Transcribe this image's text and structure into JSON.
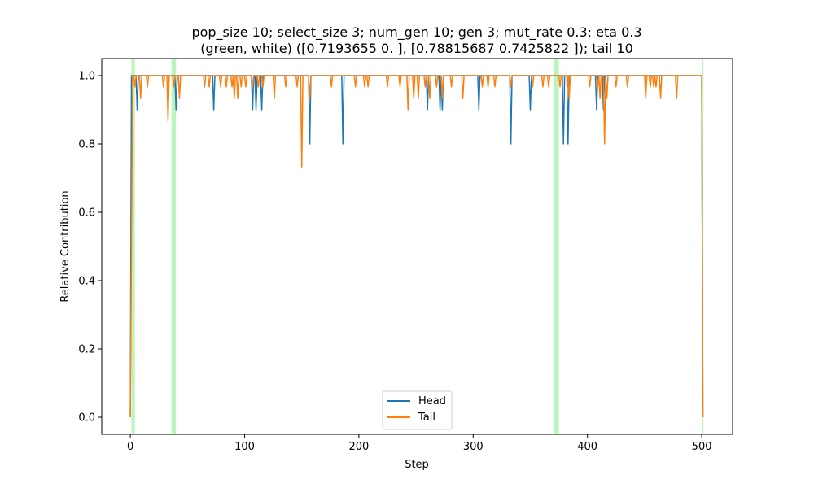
{
  "chart_data": {
    "type": "line",
    "title_line1": "pop_size 10; select_size 3; num_gen 10; gen 3; mut_rate 0.3; eta 0.3",
    "title_line2": "(green, white) ([0.7193655 0.       ], [0.78815687 0.7425822 ]); tail 10",
    "xlabel": "Step",
    "ylabel": "Relative Contribution",
    "xlim": [
      -25,
      527
    ],
    "ylim": [
      -0.05,
      1.05
    ],
    "xticks": [
      0,
      100,
      200,
      300,
      400,
      500
    ],
    "yticks": [
      0.0,
      0.2,
      0.4,
      0.6,
      0.8,
      1.0
    ],
    "ytick_labels": [
      "0.0",
      "0.2",
      "0.4",
      "0.6",
      "0.8",
      "1.0"
    ],
    "legend_position": "lower center",
    "highlight_color": "#90ee90",
    "highlight_spans": [
      [
        1,
        4
      ],
      [
        36,
        40
      ],
      [
        371,
        375
      ],
      [
        500,
        501
      ]
    ],
    "series": [
      {
        "name": "Head",
        "color": "#1f77b4",
        "baseline": 1.0,
        "start": [
          [
            0,
            0.0
          ],
          [
            1,
            1.0
          ]
        ],
        "end": [
          [
            500,
            1.0
          ],
          [
            501,
            0.0
          ]
        ],
        "dips": [
          [
            6,
            0.9
          ],
          [
            40,
            0.9
          ],
          [
            73,
            0.9
          ],
          [
            107,
            0.9
          ],
          [
            110,
            0.9
          ],
          [
            115,
            0.9
          ],
          [
            157,
            0.8
          ],
          [
            186,
            0.8
          ],
          [
            260,
            0.9
          ],
          [
            271,
            0.9
          ],
          [
            273,
            0.9
          ],
          [
            305,
            0.9
          ],
          [
            333,
            0.8
          ],
          [
            350,
            0.9
          ],
          [
            379,
            0.8
          ],
          [
            383,
            0.8
          ],
          [
            408,
            0.9
          ],
          [
            414,
            0.9
          ]
        ]
      },
      {
        "name": "Tail",
        "color": "#ff7f0e",
        "baseline": 1.0,
        "start": [
          [
            0,
            0.0
          ],
          [
            2,
            1.0
          ]
        ],
        "end": [
          [
            500,
            1.0
          ],
          [
            501,
            0.0
          ]
        ],
        "dips": [
          [
            4,
            0.967
          ],
          [
            9,
            0.933
          ],
          [
            15,
            0.967
          ],
          [
            29,
            0.967
          ],
          [
            33,
            0.867
          ],
          [
            38,
            0.967
          ],
          [
            43,
            0.933
          ],
          [
            65,
            0.967
          ],
          [
            69,
            0.967
          ],
          [
            79,
            0.967
          ],
          [
            84,
            0.967
          ],
          [
            89,
            0.967
          ],
          [
            91,
            0.933
          ],
          [
            94,
            0.933
          ],
          [
            97,
            0.967
          ],
          [
            101,
            0.967
          ],
          [
            107,
            0.967
          ],
          [
            112,
            0.967
          ],
          [
            116,
            0.967
          ],
          [
            126,
            0.933
          ],
          [
            136,
            0.967
          ],
          [
            146,
            0.967
          ],
          [
            150,
            0.733
          ],
          [
            157,
            0.933
          ],
          [
            176,
            0.967
          ],
          [
            197,
            0.967
          ],
          [
            205,
            0.967
          ],
          [
            208,
            0.967
          ],
          [
            225,
            0.967
          ],
          [
            236,
            0.967
          ],
          [
            243,
            0.9
          ],
          [
            248,
            0.933
          ],
          [
            252,
            0.933
          ],
          [
            258,
            0.967
          ],
          [
            262,
            0.933
          ],
          [
            268,
            0.967
          ],
          [
            273,
            0.933
          ],
          [
            281,
            0.967
          ],
          [
            291,
            0.933
          ],
          [
            308,
            0.967
          ],
          [
            313,
            0.967
          ],
          [
            319,
            0.967
          ],
          [
            333,
            0.967
          ],
          [
            352,
            0.967
          ],
          [
            361,
            0.967
          ],
          [
            366,
            0.967
          ],
          [
            376,
            0.967
          ],
          [
            383,
            0.967
          ],
          [
            384,
            0.933
          ],
          [
            402,
            0.967
          ],
          [
            409,
            0.967
          ],
          [
            411,
            0.933
          ],
          [
            415,
            0.8
          ],
          [
            417,
            0.933
          ],
          [
            425,
            0.967
          ],
          [
            435,
            0.967
          ],
          [
            451,
            0.933
          ],
          [
            455,
            0.967
          ],
          [
            458,
            0.967
          ],
          [
            460,
            0.967
          ],
          [
            464,
            0.933
          ],
          [
            478,
            0.933
          ]
        ]
      }
    ]
  }
}
